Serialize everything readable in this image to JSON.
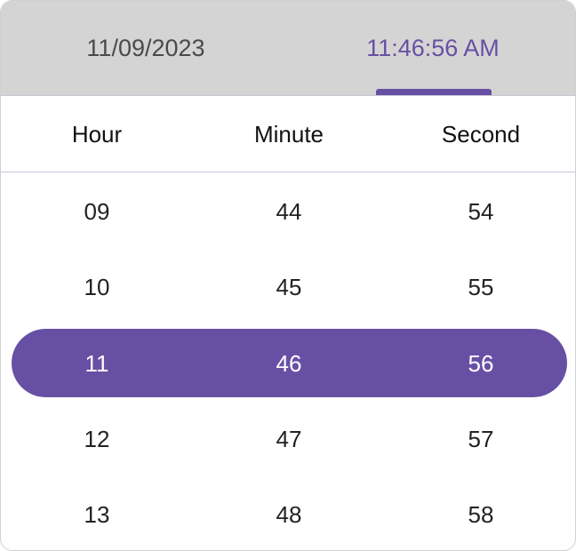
{
  "header": {
    "date_tab": "11/09/2023",
    "time_tab": "11:46:56 AM",
    "active_tab": "time"
  },
  "columns": {
    "hour": "Hour",
    "minute": "Minute",
    "second": "Second"
  },
  "hours": [
    "09",
    "10",
    "11",
    "12",
    "13"
  ],
  "minutes": [
    "44",
    "45",
    "46",
    "47",
    "48"
  ],
  "seconds": [
    "54",
    "55",
    "56",
    "57",
    "58"
  ],
  "selected_index": 2,
  "colors": {
    "accent": "#6750a4",
    "header_bg": "#d4d4d4"
  }
}
